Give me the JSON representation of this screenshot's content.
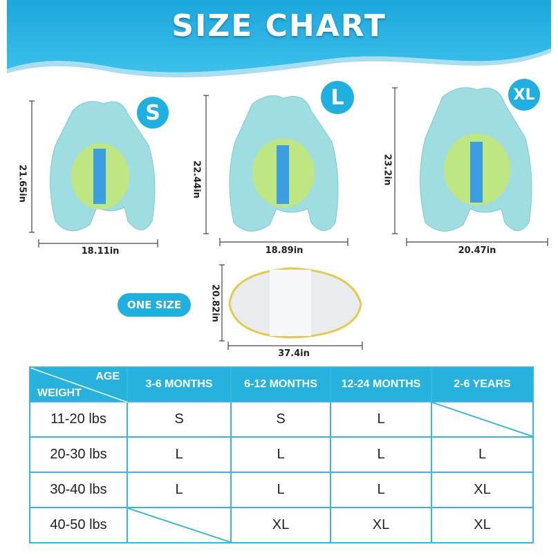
{
  "header": {
    "title": "SIZE CHART"
  },
  "colors": {
    "accent": "#1fb0e0",
    "table_border": "#36b7dc",
    "header_bg": "#27b2de"
  },
  "products": [
    {
      "size": "S",
      "height": "21.65in",
      "width": "18.11in"
    },
    {
      "size": "L",
      "height": "22.44in",
      "width": "18.89in"
    },
    {
      "size": "XL",
      "height": "23.2in",
      "width": "20.47in"
    }
  ],
  "canopy": {
    "label": "ONE SIZE",
    "height": "20.82in",
    "width": "37.4in"
  },
  "table": {
    "corner_top": "AGE",
    "corner_bottom": "WEIGHT",
    "columns": [
      "3-6 MONTHS",
      "6-12 MONTHS",
      "12-24 MONTHS",
      "2-6 YEARS"
    ],
    "rows": [
      {
        "weight": "11-20 lbs",
        "cells": [
          "S",
          "S",
          "L",
          ""
        ]
      },
      {
        "weight": "20-30 lbs",
        "cells": [
          "L",
          "L",
          "L",
          "L"
        ]
      },
      {
        "weight": "30-40 lbs",
        "cells": [
          "L",
          "L",
          "L",
          "XL"
        ]
      },
      {
        "weight": "40-50 lbs",
        "cells": [
          "",
          "XL",
          "XL",
          "XL"
        ]
      }
    ]
  }
}
